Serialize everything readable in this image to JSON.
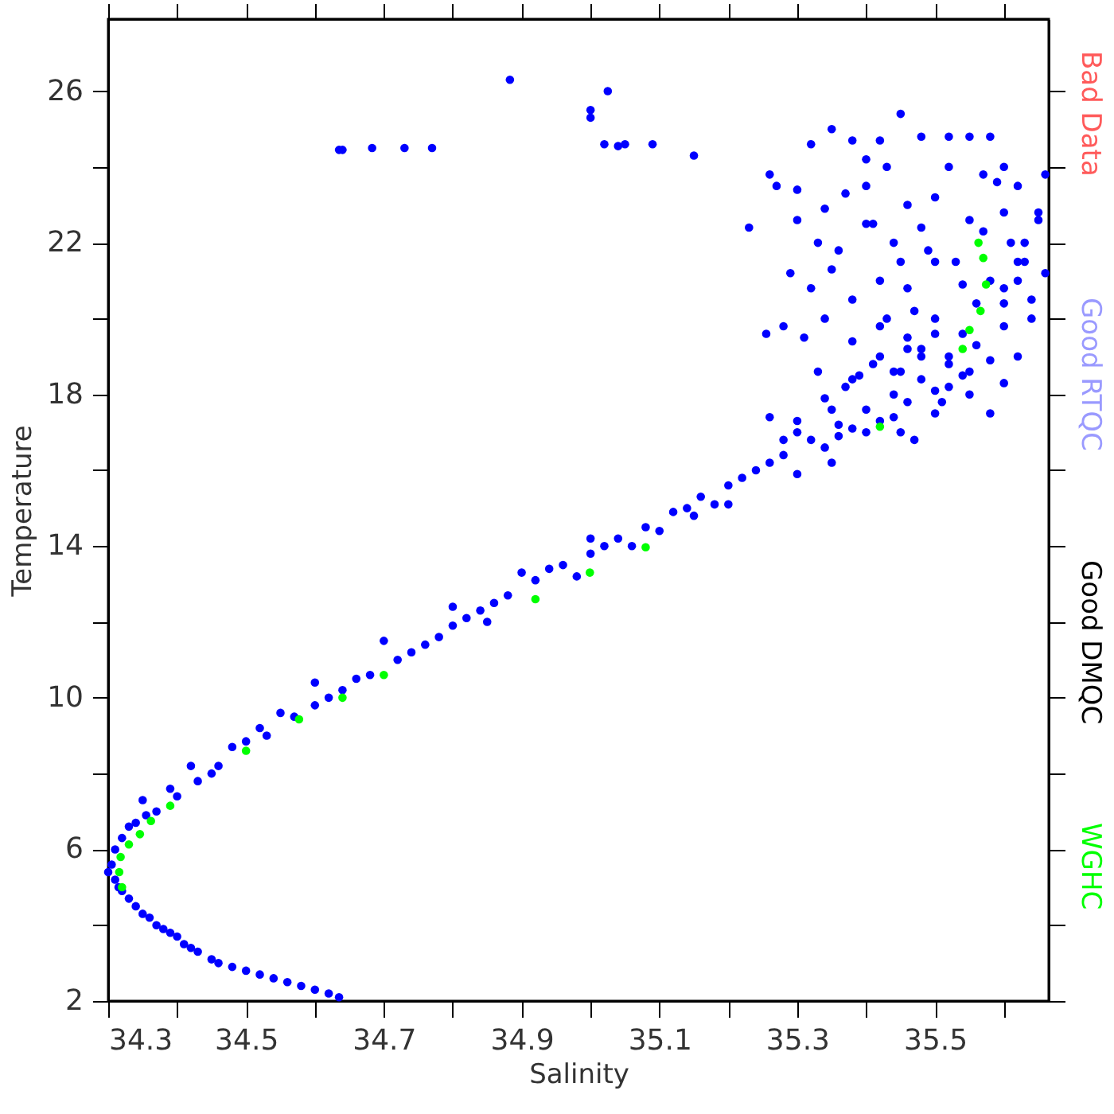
{
  "chart_data": {
    "type": "scatter",
    "xlabel": "Salinity",
    "ylabel": "Temperature",
    "xlim": [
      34.3,
      35.665
    ],
    "ylim": [
      2,
      27.9
    ],
    "xticks": [
      34.3,
      {
        "value": 34.4,
        "label": null
      },
      34.5,
      {
        "value": 34.6,
        "label": null
      },
      34.7,
      {
        "value": 34.8,
        "label": null
      },
      34.9,
      {
        "value": 35.0,
        "label": null
      },
      35.1,
      {
        "value": 35.2,
        "label": null
      },
      35.3,
      {
        "value": 35.4,
        "label": null
      },
      35.5,
      {
        "value": 35.6,
        "label": null
      }
    ],
    "yticks": [
      2,
      {
        "value": 4,
        "label": null
      },
      6,
      {
        "value": 8,
        "label": null
      },
      10,
      {
        "value": 12,
        "label": null
      },
      14,
      {
        "value": 16,
        "label": null
      },
      18,
      {
        "value": 20,
        "label": null
      },
      22,
      {
        "value": 24,
        "label": null
      },
      26
    ],
    "grid": false,
    "legend": "right",
    "marker": "circle",
    "series": [
      {
        "color": "#0000ff",
        "x": [
          34.635,
          34.64,
          34.683,
          34.73,
          34.77,
          34.883,
          35.0,
          35.0,
          35.025,
          35.02,
          35.04,
          35.05,
          35.09,
          35.15,
          35.23,
          35.255,
          34.635,
          34.6,
          34.56,
          34.52,
          34.48,
          34.45,
          34.42,
          34.4,
          34.38,
          34.36,
          34.34,
          34.32,
          34.31,
          34.305,
          34.31,
          34.32,
          34.34,
          34.37,
          34.4,
          34.43,
          34.46,
          34.5,
          34.53,
          34.57,
          34.6,
          34.64,
          34.68,
          34.72,
          34.76,
          34.8,
          34.84,
          34.88,
          34.92,
          34.96,
          35.0,
          35.04,
          35.08,
          35.12,
          35.16,
          35.2,
          35.24,
          35.28,
          35.32,
          35.36,
          35.4,
          35.44,
          35.48,
          35.52,
          35.56,
          35.6,
          35.64,
          35.66,
          34.35,
          34.42,
          34.55,
          34.6,
          34.7,
          34.8,
          34.9,
          35.0,
          35.1,
          34.85,
          34.98,
          35.15,
          35.2,
          35.3,
          35.35,
          35.3,
          35.28,
          35.45,
          35.5,
          35.55,
          35.6,
          35.62,
          35.58,
          35.27,
          35.26,
          35.3,
          35.32,
          35.35,
          35.38,
          35.4,
          35.42,
          35.45,
          35.48,
          35.52,
          35.55,
          35.58,
          35.6,
          35.62,
          35.66,
          35.3,
          35.33,
          35.36,
          35.4,
          35.44,
          35.48,
          35.5,
          35.55,
          35.6,
          35.63,
          35.65,
          35.29,
          35.32,
          35.35,
          35.38,
          35.42,
          35.46,
          35.5,
          35.54,
          35.58,
          35.62,
          35.28,
          35.31,
          35.34,
          35.38,
          35.42,
          35.46,
          35.5,
          35.54,
          35.6,
          35.64,
          35.33,
          35.37,
          35.41,
          35.45,
          35.48,
          35.52,
          35.4,
          35.44,
          35.47,
          35.36,
          35.26,
          35.35,
          35.62,
          35.4,
          35.46,
          35.37,
          35.34,
          35.43,
          35.52,
          35.57,
          34.62,
          34.58,
          34.54,
          34.5,
          34.46,
          34.43,
          34.41,
          34.39,
          34.37,
          34.35,
          34.33,
          34.315,
          34.3,
          34.33,
          34.355,
          34.39,
          34.45,
          34.48,
          34.52,
          34.62,
          34.66,
          34.74,
          34.78,
          34.82,
          34.86,
          34.94,
          35.02,
          35.06,
          35.14,
          35.18,
          35.22,
          35.26,
          35.34,
          35.38,
          35.42,
          35.46,
          35.5,
          35.54,
          35.58,
          35.44,
          35.48,
          35.52,
          35.47,
          35.43,
          35.39,
          35.51,
          35.55,
          35.49,
          35.45,
          35.41,
          35.53,
          35.57,
          35.61,
          35.65,
          35.63,
          35.59,
          35.5,
          35.46,
          35.42,
          35.38,
          35.34,
          35.3,
          35.56,
          35.6
        ],
        "values": [
          24.45,
          24.45,
          24.5,
          24.5,
          24.5,
          26.3,
          25.3,
          25.5,
          26.0,
          24.6,
          24.55,
          24.6,
          24.6,
          24.3,
          22.4,
          19.6,
          2.1,
          2.3,
          2.5,
          2.7,
          2.9,
          3.1,
          3.4,
          3.7,
          3.9,
          4.2,
          4.5,
          4.9,
          5.2,
          5.6,
          6.0,
          6.3,
          6.7,
          7.0,
          7.4,
          7.8,
          8.2,
          8.85,
          9.0,
          9.5,
          9.8,
          10.2,
          10.6,
          11.0,
          11.4,
          11.9,
          12.3,
          12.7,
          13.1,
          13.5,
          13.8,
          14.2,
          14.5,
          14.9,
          15.3,
          15.6,
          16.0,
          16.4,
          16.8,
          17.2,
          17.6,
          18.0,
          18.4,
          18.8,
          19.3,
          19.8,
          20.5,
          21.2,
          7.3,
          8.2,
          9.6,
          10.4,
          11.5,
          12.4,
          13.3,
          14.2,
          14.4,
          12.0,
          13.2,
          14.8,
          15.1,
          15.9,
          16.2,
          17.0,
          16.8,
          17.0,
          17.5,
          18.0,
          18.3,
          19.0,
          17.5,
          23.5,
          23.8,
          23.4,
          24.6,
          25.0,
          24.7,
          24.2,
          24.7,
          25.4,
          24.8,
          24.8,
          24.8,
          24.8,
          24.0,
          23.5,
          23.8,
          22.6,
          22.0,
          21.8,
          22.5,
          22.0,
          22.4,
          23.2,
          22.6,
          22.8,
          22.0,
          22.8,
          21.2,
          20.8,
          21.3,
          20.5,
          21.0,
          20.8,
          21.5,
          20.9,
          21.0,
          21.5,
          19.8,
          19.5,
          20.0,
          19.4,
          19.8,
          19.5,
          20.0,
          19.6,
          20.4,
          20.0,
          18.6,
          18.2,
          18.8,
          18.6,
          19.0,
          18.2,
          17.0,
          17.4,
          16.8,
          16.9,
          17.4,
          17.6,
          21.0,
          23.5,
          23.0,
          23.3,
          22.9,
          24.0,
          24.0,
          23.8,
          2.2,
          2.4,
          2.6,
          2.8,
          3.0,
          3.3,
          3.5,
          3.8,
          4.0,
          4.3,
          4.7,
          5.0,
          5.4,
          6.6,
          6.9,
          7.6,
          8.0,
          8.7,
          9.2,
          10.0,
          10.5,
          11.2,
          11.6,
          12.1,
          12.5,
          13.4,
          14.0,
          14.0,
          15.0,
          15.1,
          15.8,
          16.2,
          16.6,
          17.1,
          17.3,
          17.8,
          18.1,
          18.5,
          18.9,
          18.6,
          19.2,
          19.0,
          20.2,
          20.0,
          18.5,
          17.8,
          18.6,
          21.8,
          21.5,
          22.5,
          21.5,
          22.3,
          22.0,
          22.6,
          21.5,
          23.6,
          19.6,
          19.2,
          19.0,
          18.4,
          17.9,
          17.3,
          20.4,
          20.8
        ]
      },
      {
        "name": "Bad Data",
        "color": "#ff5a5a"
      },
      {
        "name": "Good RTQC",
        "color": "#9a9aff"
      },
      {
        "name": "Good DMQC",
        "color": "#000000"
      },
      {
        "name": "WGHC",
        "color": "#00ff00",
        "x": [
          35.563,
          35.57,
          35.574,
          35.566,
          35.55,
          35.54,
          35.42,
          35.08,
          34.999,
          34.92,
          34.7,
          34.64,
          34.577,
          34.5,
          34.39,
          34.362,
          34.346,
          34.33,
          34.318,
          34.316,
          34.32
        ],
        "values": [
          22.0,
          21.6,
          20.9,
          20.2,
          19.7,
          19.2,
          17.15,
          13.97,
          13.3,
          12.6,
          10.6,
          10.0,
          9.43,
          8.6,
          7.15,
          6.75,
          6.4,
          6.13,
          5.8,
          5.4,
          5.0
        ]
      }
    ]
  }
}
